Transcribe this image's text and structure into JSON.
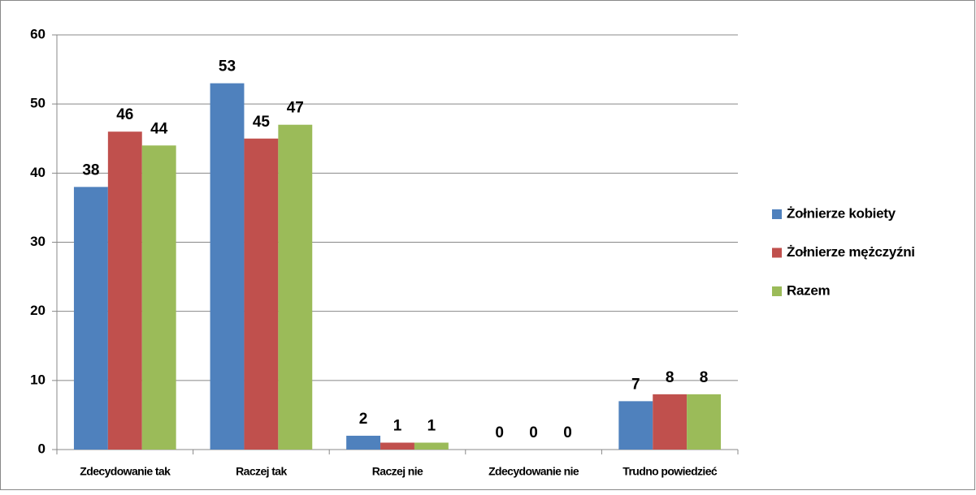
{
  "chart_data": {
    "type": "bar",
    "categories": [
      "Zdecydowanie tak",
      "Raczej tak",
      "Raczej nie",
      "Zdecydowanie nie",
      "Trudno powiedzieć"
    ],
    "series": [
      {
        "name": "Żołnierze kobiety",
        "color": "#4f81bd",
        "values": [
          38,
          53,
          2,
          0,
          7
        ]
      },
      {
        "name": "Żołnierze mężczyźni",
        "color": "#c0504d",
        "values": [
          46,
          45,
          1,
          0,
          8
        ]
      },
      {
        "name": "Razem",
        "color": "#9bbb59",
        "values": [
          44,
          47,
          1,
          0,
          8
        ]
      }
    ],
    "ylim": [
      0,
      60
    ],
    "yticks": [
      0,
      10,
      20,
      30,
      40,
      50,
      60
    ],
    "grid": true,
    "legend": "right"
  }
}
